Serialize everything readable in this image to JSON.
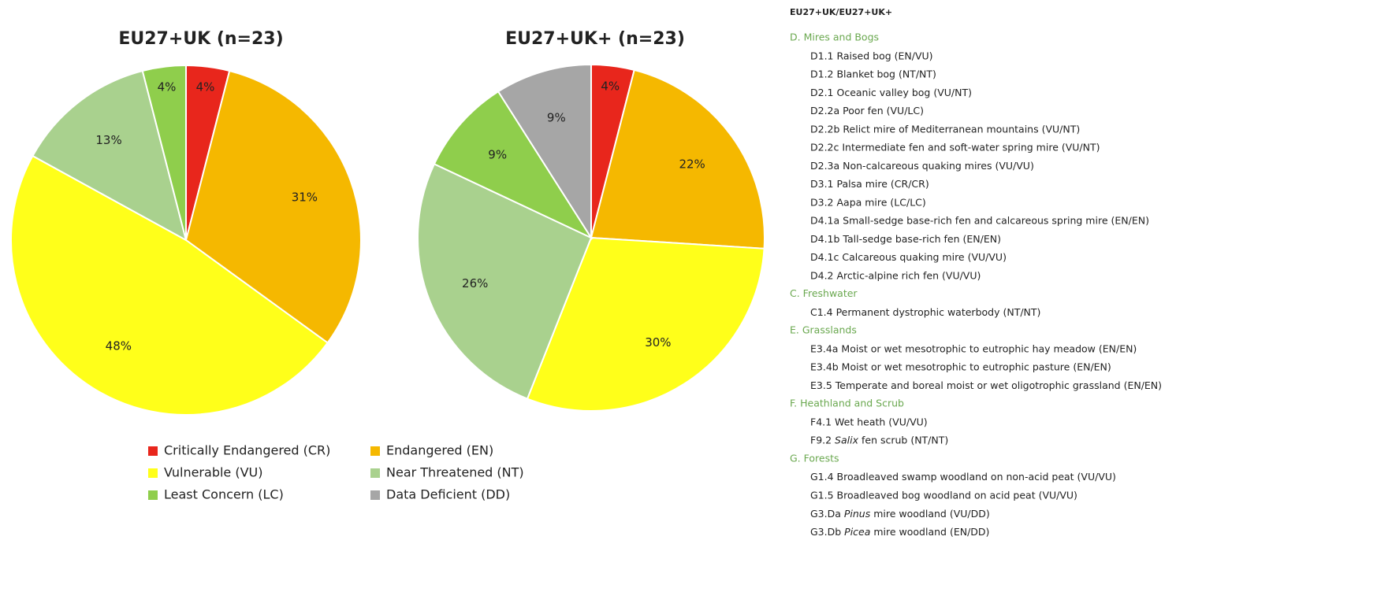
{
  "chart_data": [
    {
      "type": "pie",
      "title": "EU27+UK (n=23)",
      "values": [
        4,
        31,
        48,
        13,
        4
      ],
      "value_labels": [
        "4%",
        "31%",
        "48%",
        "13%",
        "4%"
      ],
      "colors": [
        "#e8261c",
        "#f5b800",
        "#ffff1a",
        "#a9d18e",
        "#8fce4c"
      ]
    },
    {
      "type": "pie",
      "title": "EU27+UK+ (n=23)",
      "values": [
        4,
        22,
        30,
        26,
        9,
        9
      ],
      "value_labels": [
        "4%",
        "22%",
        "30%",
        "26%",
        "9%",
        "9%"
      ],
      "colors": [
        "#e8261c",
        "#f5b800",
        "#ffff1a",
        "#a9d18e",
        "#8fce4c",
        "#a6a6a6"
      ]
    }
  ],
  "legend": [
    {
      "name": "Critically Endangered (CR)",
      "color": "#e8261c"
    },
    {
      "name": "Endangered (EN)",
      "color": "#f5b800"
    },
    {
      "name": "Vulnerable (VU)",
      "color": "#ffff1a"
    },
    {
      "name": "Near Threatened (NT)",
      "color": "#a9d18e"
    },
    {
      "name": "Least Concern (LC)",
      "color": "#8fce4c"
    },
    {
      "name": "Data Deficient (DD)",
      "color": "#a6a6a6"
    }
  ],
  "habitat_list": {
    "header": "EU27+UK/EU27+UK+",
    "sections": [
      {
        "title": "D. Mires and Bogs",
        "items": [
          [
            "D1.1 Raised bog (EN/VU)"
          ],
          [
            "D1.2 Blanket bog (NT/NT)"
          ],
          [
            "D2.1 Oceanic valley bog (VU/NT)"
          ],
          [
            "D2.2a Poor fen (VU/LC)"
          ],
          [
            "D2.2b Relict mire of Mediterranean mountains (VU/NT)"
          ],
          [
            "D2.2c Intermediate fen and soft-water spring mire (VU/NT)"
          ],
          [
            "D2.3a Non-calcareous quaking mires (VU/VU)"
          ],
          [
            "D3.1 Palsa mire (CR/CR)"
          ],
          [
            "D3.2 Aapa mire (LC/LC)"
          ],
          [
            "D4.1a Small-sedge base-rich fen and calcareous spring mire (EN/EN)"
          ],
          [
            "D4.1b Tall-sedge base-rich fen (EN/EN)"
          ],
          [
            "D4.1c Calcareous quaking mire (VU/VU)"
          ],
          [
            "D4.2 Arctic-alpine rich fen (VU/VU)"
          ]
        ]
      },
      {
        "title": "C. Freshwater",
        "items": [
          [
            "C1.4 Permanent dystrophic waterbody (NT/NT)"
          ]
        ]
      },
      {
        "title": "E. Grasslands",
        "items": [
          [
            "E3.4a Moist or wet mesotrophic to eutrophic hay meadow (EN/EN)"
          ],
          [
            "E3.4b Moist or wet mesotrophic to eutrophic pasture (EN/EN)"
          ],
          [
            "E3.5 Temperate and boreal moist or wet oligotrophic grassland (EN/EN)"
          ]
        ]
      },
      {
        "title": "F. Heathland and Scrub",
        "items": [
          [
            "F4.1 Wet heath (VU/VU)"
          ],
          [
            "F9.2 ",
            "Salix",
            " fen scrub (NT/NT)"
          ]
        ]
      },
      {
        "title": "G. Forests",
        "items": [
          [
            "G1.4 Broadleaved swamp woodland on non-acid peat (VU/VU)"
          ],
          [
            "G1.5 Broadleaved bog woodland on acid peat (VU/VU)"
          ],
          [
            "G3.Da ",
            "Pinus",
            " mire woodland (VU/DD)"
          ],
          [
            "G3.Db ",
            "Picea",
            " mire woodland (EN/DD)"
          ]
        ]
      }
    ]
  }
}
